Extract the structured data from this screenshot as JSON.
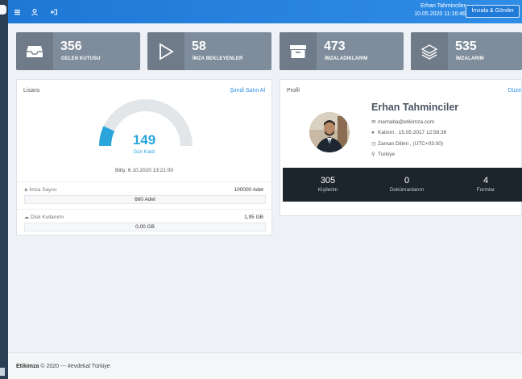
{
  "topbar": {
    "user_name": "Erhan Tahminciler",
    "datetime": "10.05.2020 11:16:46",
    "sign_send_button": "İmzala & Gönder",
    "icons": [
      "menu-icon",
      "user-icon",
      "logout-icon"
    ]
  },
  "tiles": [
    {
      "value": "356",
      "label": "GELEN KUTUSU",
      "icon": "inbox-icon"
    },
    {
      "value": "58",
      "label": "İMZA BEKLEYENLER",
      "icon": "play-icon"
    },
    {
      "value": "473",
      "label": "İMZALADIKLARIM",
      "icon": "archive-icon"
    },
    {
      "value": "535",
      "label": "İMZALARIM",
      "icon": "layers-icon"
    }
  ],
  "license": {
    "title": "Lisans",
    "buy_link": "Şimdi Satın Al",
    "days_left": "149",
    "days_left_label": "Gün Kaldı",
    "gauge_fraction": 0.14,
    "end_date": "Bitiş: 6.10.2020 13:21:00",
    "signature_count_label": "İmza Sayısı",
    "signature_count_total": "100000 Adet",
    "signature_count_used": "660 Adet",
    "disk_label": "Disk Kullanımı",
    "disk_total": "1,95 GB",
    "disk_used": "0,00 GB"
  },
  "profile": {
    "title": "Profil",
    "edit_link": "Düze",
    "name": "Erhan Tahminciler",
    "email": "merhaba@etikimza.com",
    "joined": "Katılım , 15.05.2017 12:58:36",
    "timezone": "Zaman Dilimi , (UTC+03:00)",
    "country": "Turkiye",
    "stats": [
      {
        "value": "305",
        "label": "Kişilerim"
      },
      {
        "value": "0",
        "label": "Dokümanlarım"
      },
      {
        "value": "4",
        "label": "Formlar"
      }
    ]
  },
  "footer": {
    "brand": "Etikimza",
    "text": " © 2020 --- #evdekal Türkiye"
  },
  "colors": {
    "topbar": "#2f8de6",
    "tile": "#7f8c9b",
    "accent": "#2aa6dc",
    "stats_bar": "#1d252c"
  }
}
